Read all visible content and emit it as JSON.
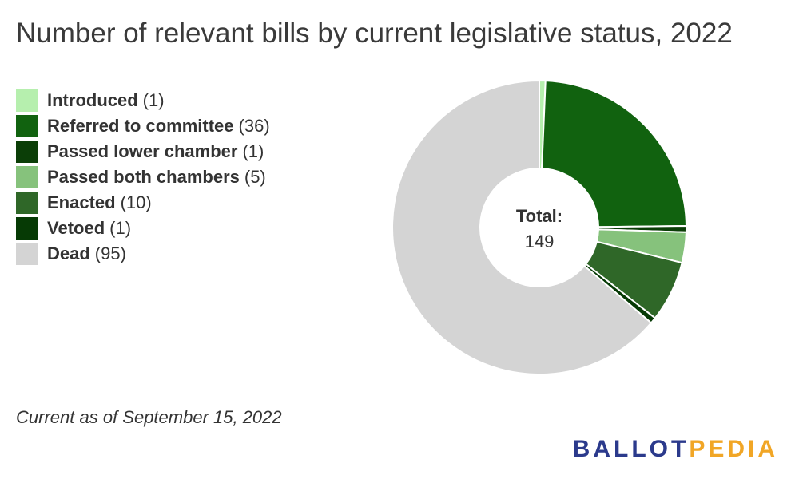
{
  "chart_data": {
    "type": "pie",
    "title": "Number of relevant bills by current legislative status, 2022",
    "categories": [
      "Introduced",
      "Referred to committee",
      "Passed lower chamber",
      "Passed both chambers",
      "Enacted",
      "Vetoed",
      "Dead"
    ],
    "values": [
      1,
      36,
      1,
      5,
      10,
      1,
      95
    ],
    "colors": [
      "#b6efae",
      "#11620f",
      "#0b3e07",
      "#86c27c",
      "#2f6728",
      "#063a05",
      "#d4d4d4"
    ],
    "center_label": "Total:",
    "center_value": "149",
    "donut": true,
    "legend_position": "left"
  },
  "note": "Current as of September 15, 2022",
  "logo": {
    "part1": "BALLOT",
    "part2": "PEDIA"
  }
}
